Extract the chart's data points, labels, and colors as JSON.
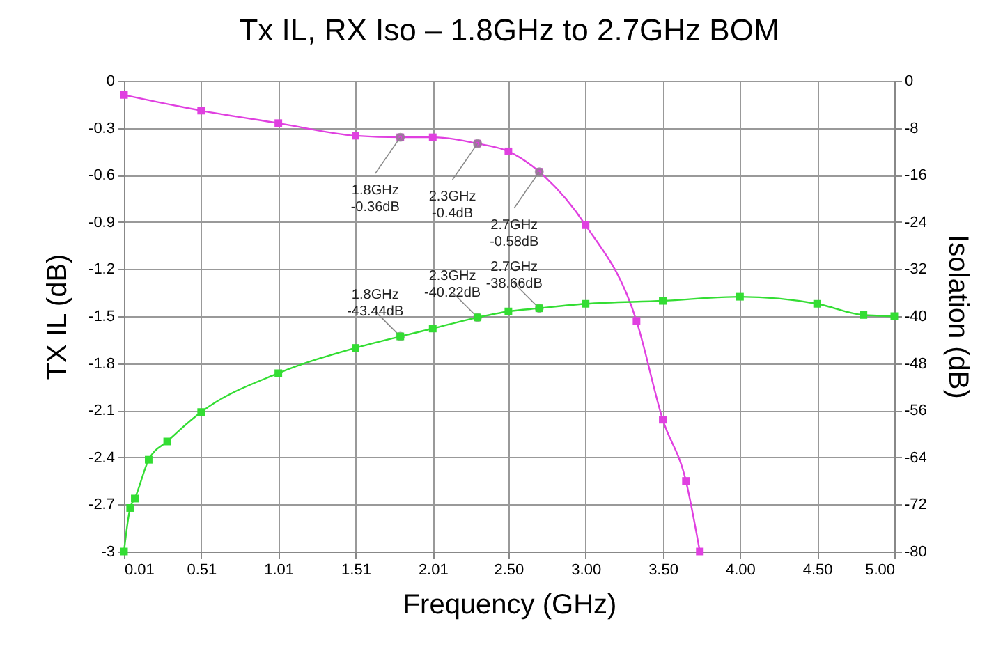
{
  "chart_data": {
    "type": "line",
    "title": "Tx IL, RX Iso – 1.8GHz to 2.7GHz BOM",
    "xlabel": "Frequency (GHz)",
    "ylabel": "TX IL (dB)",
    "y2label": "Isolation (dB)",
    "xlim": [
      0.01,
      5.0
    ],
    "xticks": [
      0.01,
      0.51,
      1.01,
      1.51,
      2.01,
      {
        "value": 2.5,
        "label": "2.50"
      },
      {
        "value": 3,
        "label": "3.00"
      },
      {
        "value": 3.5,
        "label": "3.50"
      },
      {
        "value": 4,
        "label": "4.00"
      },
      {
        "value": 4.5,
        "label": "4.50"
      },
      {
        "value": 5,
        "label": "5.00"
      }
    ],
    "ylim": [
      -3,
      0
    ],
    "yticks": [
      0,
      -0.3,
      -0.6,
      -0.9,
      -1.2,
      -1.5,
      -1.8,
      -2.1,
      -2.4,
      -2.7,
      -3
    ],
    "y2lim": [
      -80,
      0
    ],
    "y2ticks": [
      0,
      -8,
      -16,
      -24,
      -32,
      -40,
      -48,
      -56,
      -64,
      -72,
      -80
    ],
    "grid": true,
    "marker": "square",
    "line_style": "solid",
    "series": [
      {
        "color": "#e040e0",
        "x": [
          0.01,
          0.51,
          1.01,
          1.51,
          1.8,
          2.01,
          2.3,
          2.5,
          2.7,
          3.0,
          3.33,
          3.5,
          3.65,
          3.74
        ],
        "values": [
          -0.09,
          -0.19,
          -0.27,
          -0.35,
          -0.36,
          -0.36,
          -0.4,
          -0.45,
          -0.58,
          -0.92,
          -1.53,
          -2.16,
          -2.55,
          -3.0
        ]
      },
      {
        "color": "#33dd33",
        "axis": "y2",
        "x": [
          0.01,
          0.05,
          0.08,
          0.17,
          0.29,
          0.51,
          1.01,
          1.51,
          1.8,
          2.01,
          2.3,
          2.5,
          2.7,
          3.0,
          3.5,
          4.0,
          4.5,
          4.8,
          5.0
        ],
        "values": [
          -80,
          -72.6,
          -71,
          -64.4,
          -61.3,
          -56.3,
          -49.7,
          -45.4,
          -43.44,
          -42.1,
          -40.22,
          -39.2,
          -38.66,
          -37.9,
          -37.4,
          -36.7,
          -37.9,
          -39.8,
          -40
        ]
      }
    ],
    "annotations": [
      {
        "text": "1.8GHz\n-0.36dB",
        "x": 1.8,
        "y": -0.36
      },
      {
        "text": "2.3GHz\n-0.4dB",
        "x": 2.3,
        "y": -0.4
      },
      {
        "text": "2.7GHz\n-0.58dB",
        "x": 2.7,
        "y": -0.58
      },
      {
        "text": "1.8GHz\n-43.44dB",
        "x": 1.8,
        "y": -1.629
      },
      {
        "text": "2.3GHz\n-40.22dB",
        "x": 2.3,
        "y": -1.508
      },
      {
        "text": "2.7GHz\n-38.66dB",
        "x": 2.7,
        "y": -1.45
      }
    ]
  }
}
